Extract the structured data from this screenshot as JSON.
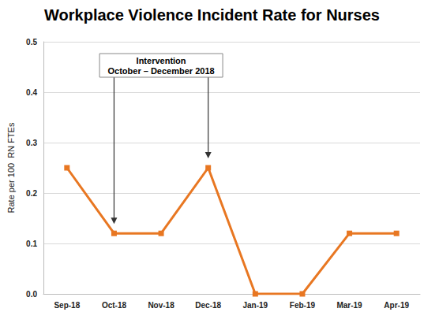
{
  "chart_data": {
    "type": "line",
    "title": "Workplace Violence Incident Rate for Nurses",
    "y_label": "Rate per 100  RN FTEs",
    "categories": [
      "Sep-18",
      "Oct-18",
      "Nov-18",
      "Dec-18",
      "Jan-19",
      "Feb-19",
      "Mar-19",
      "Apr-19"
    ],
    "values": [
      0.25,
      0.12,
      0.12,
      0.25,
      0,
      0,
      0.12,
      0.12
    ],
    "color": "#e87722",
    "marker": "square",
    "line_style": "solid",
    "ylim": [
      0,
      0.5
    ],
    "yticks": [
      {
        "value": 0,
        "label": "0.0"
      },
      0.1,
      0.2,
      0.3,
      0.4,
      0.5
    ],
    "grid": true,
    "annotations": [
      {
        "text": [
          "Intervention",
          "October – December 2018"
        ],
        "points_to": [
          "Oct-18",
          "Dec-18"
        ]
      }
    ]
  }
}
